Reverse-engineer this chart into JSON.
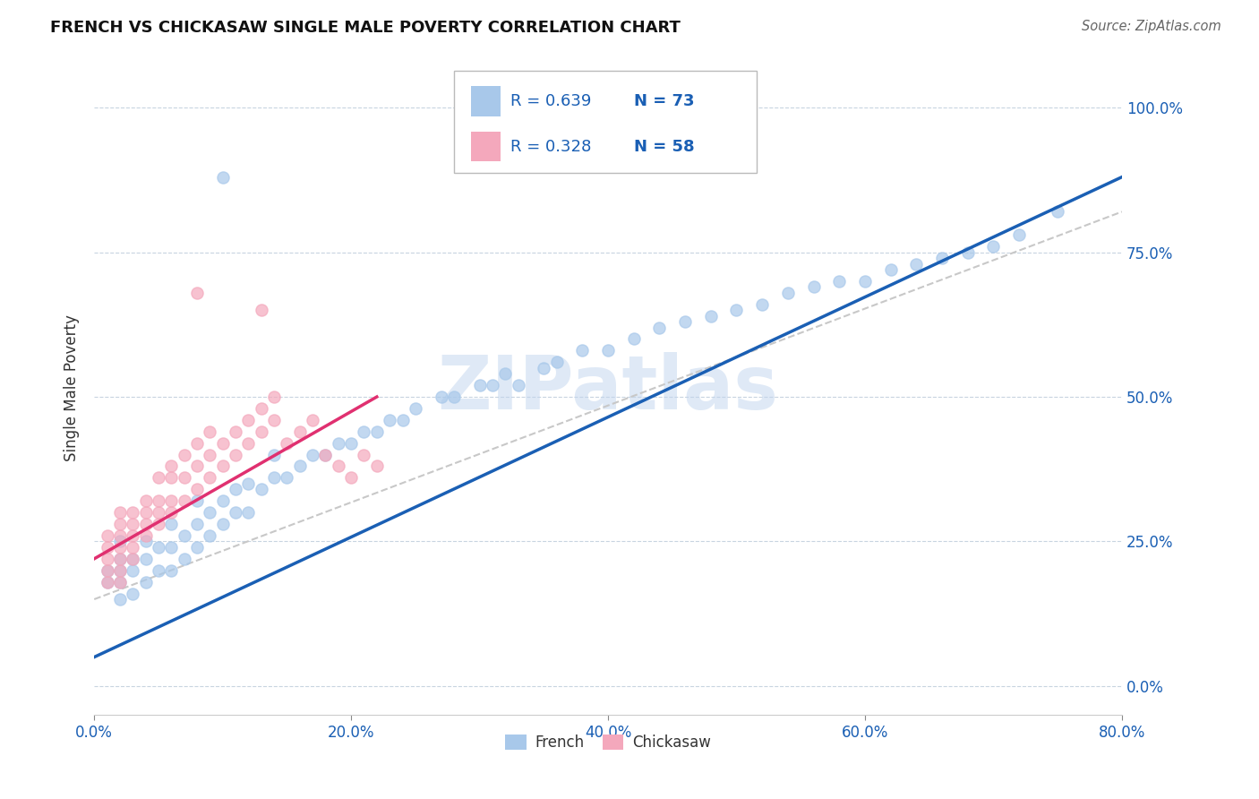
{
  "title": "FRENCH VS CHICKASAW SINGLE MALE POVERTY CORRELATION CHART",
  "source": "Source: ZipAtlas.com",
  "ylabel": "Single Male Poverty",
  "watermark": "ZIPatlas",
  "legend_french_R": "0.639",
  "legend_french_N": "73",
  "legend_chickasaw_R": "0.328",
  "legend_chickasaw_N": "58",
  "french_color": "#a8c8ea",
  "chickasaw_color": "#f4a8bc",
  "french_line_color": "#1a5fb4",
  "chickasaw_line_color": "#e03070",
  "dashed_line_color": "#c8c8c8",
  "xlim": [
    0.0,
    0.8
  ],
  "ylim": [
    -0.05,
    1.08
  ],
  "xtick_vals": [
    0.0,
    0.2,
    0.4,
    0.6,
    0.8
  ],
  "ytick_vals": [
    0.0,
    0.25,
    0.5,
    0.75,
    1.0
  ],
  "french_x": [
    0.01,
    0.01,
    0.02,
    0.02,
    0.02,
    0.02,
    0.02,
    0.03,
    0.03,
    0.03,
    0.04,
    0.04,
    0.04,
    0.05,
    0.05,
    0.06,
    0.06,
    0.06,
    0.07,
    0.07,
    0.08,
    0.08,
    0.08,
    0.09,
    0.09,
    0.1,
    0.1,
    0.11,
    0.11,
    0.12,
    0.12,
    0.13,
    0.14,
    0.14,
    0.15,
    0.16,
    0.17,
    0.18,
    0.19,
    0.2,
    0.21,
    0.22,
    0.23,
    0.24,
    0.25,
    0.27,
    0.28,
    0.3,
    0.31,
    0.32,
    0.33,
    0.35,
    0.36,
    0.38,
    0.4,
    0.42,
    0.44,
    0.46,
    0.48,
    0.5,
    0.52,
    0.54,
    0.56,
    0.58,
    0.6,
    0.62,
    0.64,
    0.66,
    0.68,
    0.7,
    0.72,
    0.75,
    0.1
  ],
  "french_y": [
    0.18,
    0.2,
    0.15,
    0.18,
    0.2,
    0.22,
    0.25,
    0.16,
    0.2,
    0.22,
    0.18,
    0.22,
    0.25,
    0.2,
    0.24,
    0.2,
    0.24,
    0.28,
    0.22,
    0.26,
    0.24,
    0.28,
    0.32,
    0.26,
    0.3,
    0.28,
    0.32,
    0.3,
    0.34,
    0.3,
    0.35,
    0.34,
    0.36,
    0.4,
    0.36,
    0.38,
    0.4,
    0.4,
    0.42,
    0.42,
    0.44,
    0.44,
    0.46,
    0.46,
    0.48,
    0.5,
    0.5,
    0.52,
    0.52,
    0.54,
    0.52,
    0.55,
    0.56,
    0.58,
    0.58,
    0.6,
    0.62,
    0.63,
    0.64,
    0.65,
    0.66,
    0.68,
    0.69,
    0.7,
    0.7,
    0.72,
    0.73,
    0.74,
    0.75,
    0.76,
    0.78,
    0.82,
    0.88
  ],
  "chickasaw_x": [
    0.01,
    0.01,
    0.01,
    0.01,
    0.01,
    0.02,
    0.02,
    0.02,
    0.02,
    0.02,
    0.02,
    0.02,
    0.03,
    0.03,
    0.03,
    0.03,
    0.03,
    0.04,
    0.04,
    0.04,
    0.04,
    0.05,
    0.05,
    0.05,
    0.05,
    0.06,
    0.06,
    0.06,
    0.06,
    0.07,
    0.07,
    0.07,
    0.08,
    0.08,
    0.08,
    0.09,
    0.09,
    0.09,
    0.1,
    0.1,
    0.11,
    0.11,
    0.12,
    0.12,
    0.13,
    0.13,
    0.14,
    0.14,
    0.15,
    0.16,
    0.17,
    0.18,
    0.19,
    0.2,
    0.21,
    0.22,
    0.13,
    0.08
  ],
  "chickasaw_y": [
    0.18,
    0.2,
    0.22,
    0.24,
    0.26,
    0.18,
    0.2,
    0.22,
    0.24,
    0.26,
    0.28,
    0.3,
    0.22,
    0.24,
    0.26,
    0.28,
    0.3,
    0.26,
    0.28,
    0.3,
    0.32,
    0.28,
    0.3,
    0.32,
    0.36,
    0.3,
    0.32,
    0.36,
    0.38,
    0.32,
    0.36,
    0.4,
    0.34,
    0.38,
    0.42,
    0.36,
    0.4,
    0.44,
    0.38,
    0.42,
    0.4,
    0.44,
    0.42,
    0.46,
    0.44,
    0.48,
    0.46,
    0.5,
    0.42,
    0.44,
    0.46,
    0.4,
    0.38,
    0.36,
    0.4,
    0.38,
    0.65,
    0.68
  ],
  "french_line_x": [
    0.0,
    0.8
  ],
  "french_line_y": [
    0.05,
    0.88
  ],
  "chickasaw_line_x": [
    0.0,
    0.22
  ],
  "chickasaw_line_y": [
    0.22,
    0.5
  ],
  "dashed_line_x": [
    0.0,
    0.8
  ],
  "dashed_line_y": [
    0.15,
    0.82
  ]
}
